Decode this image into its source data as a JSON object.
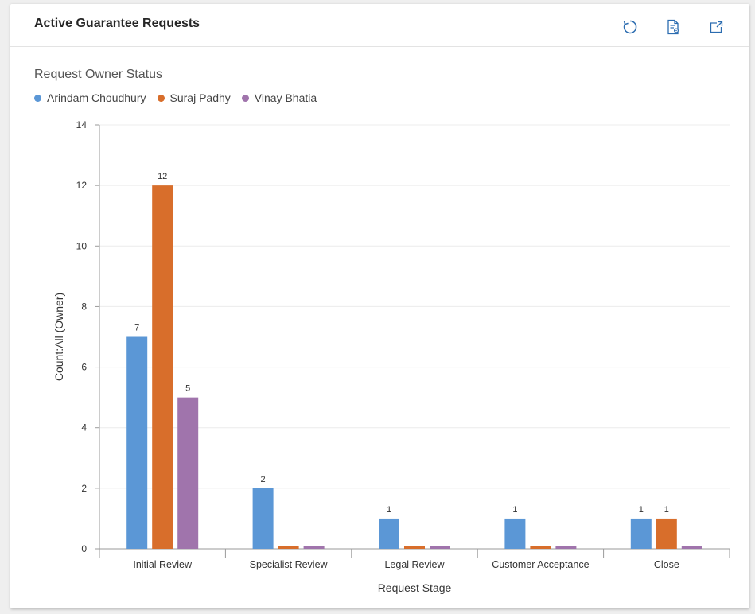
{
  "header": {
    "title": "Active Guarantee Requests"
  },
  "toolbar": {
    "refresh_icon": "refresh-icon",
    "view_records_icon": "view-records-icon",
    "expand_icon": "expand-icon"
  },
  "chart_data": {
    "type": "bar",
    "title": "Request Owner Status",
    "xlabel": "Request Stage",
    "ylabel": "Count:All (Owner)",
    "ylim": [
      0,
      14
    ],
    "yticks": [
      0,
      2,
      4,
      6,
      8,
      10,
      12,
      14
    ],
    "grid": true,
    "legend_position": "top-left",
    "categories": [
      "Initial Review",
      "Specialist Review",
      "Legal Review",
      "Customer Acceptance",
      "Close"
    ],
    "series": [
      {
        "name": "Arindam Choudhury",
        "color": "#5b97d6",
        "values": [
          7,
          2,
          1,
          1,
          1
        ],
        "labels": [
          "7",
          "2",
          "1",
          "1",
          "1"
        ]
      },
      {
        "name": "Suraj Padhy",
        "color": "#d86e2b",
        "values": [
          12,
          0,
          0,
          0,
          1
        ],
        "labels": [
          "12",
          "",
          "",
          "",
          "1"
        ]
      },
      {
        "name": "Vinay Bhatia",
        "color": "#a074ac",
        "values": [
          5,
          0,
          0,
          0,
          0
        ],
        "labels": [
          "5",
          "",
          "",
          "",
          ""
        ]
      }
    ]
  }
}
